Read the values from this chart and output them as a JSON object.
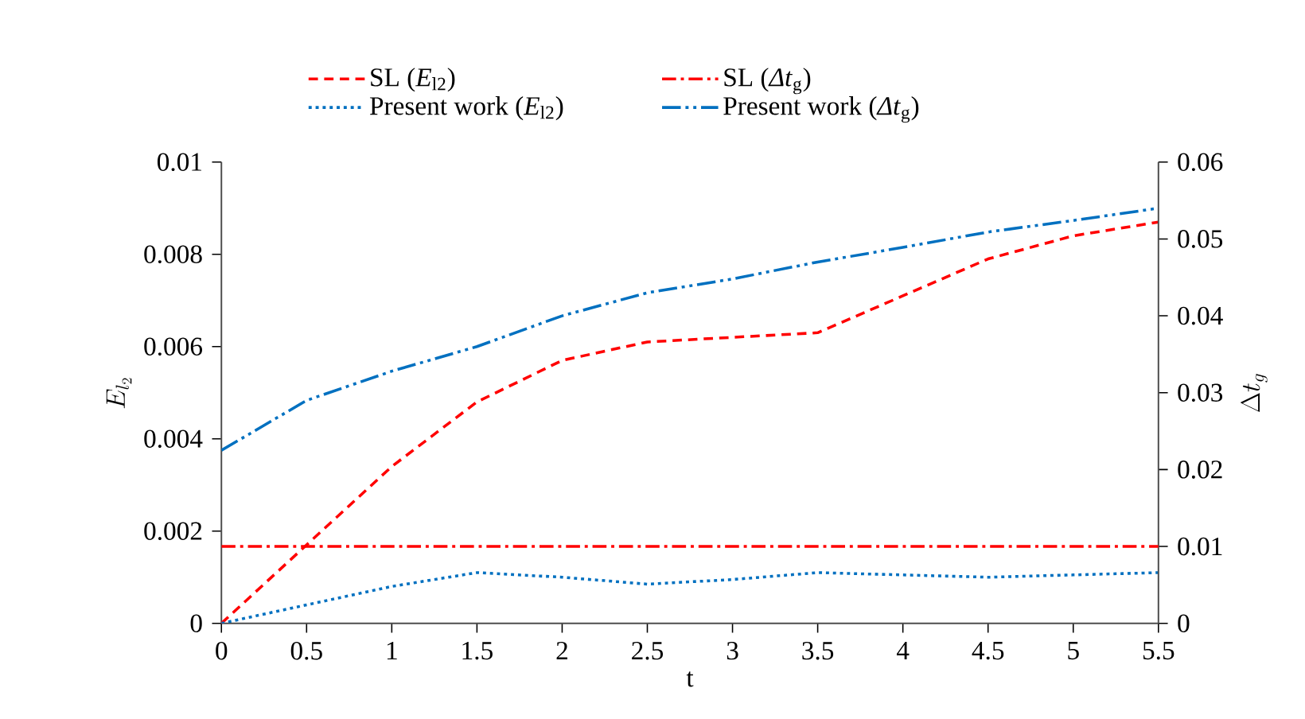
{
  "chart_data": {
    "type": "line",
    "xlabel": "t",
    "ylabel": "E_{l_2}",
    "y2label": "\\Delta t_g",
    "x": [
      0,
      0.5,
      1,
      1.5,
      2,
      2.5,
      3,
      3.5,
      4,
      4.5,
      5,
      5.5
    ],
    "series": [
      {
        "name": "SL (*E*$_{l2}$)",
        "color": "#ff0000",
        "line_style": "dashed",
        "values": [
          0,
          0.0017,
          0.0034,
          0.0048,
          0.0057,
          0.0061,
          0.0062,
          0.0063,
          0.0071,
          0.0079,
          0.0084,
          0.0087
        ]
      },
      {
        "name": "SL (*Δt*$_{g}$)",
        "color": "#ff0000",
        "line_style": "dashdotted",
        "axis": "y2",
        "values": [
          0.01,
          0.01,
          0.01,
          0.01,
          0.01,
          0.01,
          0.01,
          0.01,
          0.01,
          0.01,
          0.01,
          0.01
        ]
      },
      {
        "name": "Present work (*E*$_{l2}$)",
        "color": "#0070c0",
        "line_style": "dotted",
        "values": [
          0,
          0.0004,
          0.0008,
          0.0011,
          0.001,
          0.00085,
          0.00095,
          0.0011,
          0.00105,
          0.001,
          0.00105,
          0.0011
        ]
      },
      {
        "name": "Present work (*Δt*$_{g}$)",
        "color": "#0070c0",
        "line_style": "dashdotdotted",
        "axis": "y2",
        "values": [
          0.0225,
          0.029,
          0.0328,
          0.036,
          0.04,
          0.043,
          0.0448,
          0.047,
          0.0489,
          0.0509,
          0.0524,
          0.054
        ]
      }
    ],
    "xlim": [
      0,
      5.5
    ],
    "xticks": [
      0,
      0.5,
      1,
      1.5,
      2,
      2.5,
      3,
      3.5,
      4,
      4.5,
      5,
      5.5
    ],
    "ylim": [
      0,
      0.01
    ],
    "yticks": [
      0,
      0.002,
      0.004,
      0.006,
      0.008,
      0.01
    ],
    "y2lim": [
      0,
      0.06
    ],
    "y2ticks": [
      0,
      0.01,
      0.02,
      0.03,
      0.04,
      0.05,
      0.06
    ],
    "grid": false,
    "legend": "top",
    "marker": "none"
  }
}
